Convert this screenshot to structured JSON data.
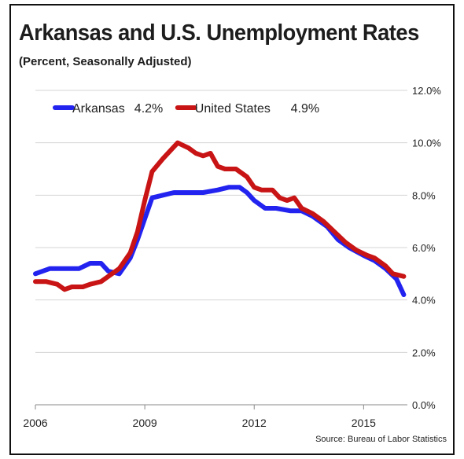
{
  "chart_data": {
    "type": "line",
    "title": "Arkansas and U.S. Unemployment Rates",
    "subtitle": "(Percent, Seasonally Adjusted)",
    "source": "Source: Bureau of Labor Statistics",
    "xlim": [
      2006,
      2016.2
    ],
    "ylim": [
      0,
      12
    ],
    "x_ticks": [
      2006,
      2009,
      2012,
      2015
    ],
    "x_tick_labels": [
      "2006",
      "2009",
      "2012",
      "2015"
    ],
    "y_ticks": [
      0,
      2,
      4,
      6,
      8,
      10,
      12
    ],
    "y_tick_labels": [
      "0.0%",
      "2.0%",
      "4.0%",
      "6.0%",
      "8.0%",
      "10.0%",
      "12.0%"
    ],
    "y_axis_side": "right",
    "grid": "horizontal",
    "legend_position": "top-left",
    "series": [
      {
        "name": "Arkansas",
        "legend_value": "4.2%",
        "color": "#2323f0",
        "x": [
          2006.0,
          2006.4,
          2006.8,
          2007.2,
          2007.5,
          2007.8,
          2008.0,
          2008.3,
          2008.6,
          2008.8,
          2009.0,
          2009.2,
          2009.5,
          2009.8,
          2010.2,
          2010.6,
          2011.0,
          2011.3,
          2011.6,
          2011.8,
          2012.0,
          2012.3,
          2012.6,
          2013.0,
          2013.3,
          2013.6,
          2014.0,
          2014.3,
          2014.6,
          2015.0,
          2015.3,
          2015.6,
          2015.9,
          2016.1
        ],
        "y": [
          5.0,
          5.2,
          5.2,
          5.2,
          5.4,
          5.4,
          5.1,
          5.0,
          5.6,
          6.3,
          7.1,
          7.9,
          8.0,
          8.1,
          8.1,
          8.1,
          8.2,
          8.3,
          8.3,
          8.1,
          7.8,
          7.5,
          7.5,
          7.4,
          7.4,
          7.2,
          6.8,
          6.3,
          6.0,
          5.7,
          5.5,
          5.2,
          4.8,
          4.2
        ]
      },
      {
        "name": "United States",
        "legend_value": "4.9%",
        "color": "#c81414",
        "x": [
          2006.0,
          2006.3,
          2006.6,
          2006.8,
          2007.0,
          2007.3,
          2007.5,
          2007.8,
          2008.0,
          2008.3,
          2008.6,
          2008.8,
          2009.0,
          2009.2,
          2009.5,
          2009.7,
          2009.9,
          2010.2,
          2010.4,
          2010.6,
          2010.8,
          2011.0,
          2011.2,
          2011.5,
          2011.8,
          2012.0,
          2012.2,
          2012.5,
          2012.7,
          2012.9,
          2013.1,
          2013.3,
          2013.6,
          2013.9,
          2014.2,
          2014.5,
          2014.8,
          2015.1,
          2015.3,
          2015.6,
          2015.8,
          2016.1
        ],
        "y": [
          4.7,
          4.7,
          4.6,
          4.4,
          4.5,
          4.5,
          4.6,
          4.7,
          4.9,
          5.2,
          5.8,
          6.6,
          7.8,
          8.9,
          9.4,
          9.7,
          10.0,
          9.8,
          9.6,
          9.5,
          9.6,
          9.1,
          9.0,
          9.0,
          8.7,
          8.3,
          8.2,
          8.2,
          7.9,
          7.8,
          7.9,
          7.5,
          7.3,
          7.0,
          6.6,
          6.2,
          5.9,
          5.7,
          5.6,
          5.3,
          5.0,
          4.9
        ]
      }
    ]
  }
}
